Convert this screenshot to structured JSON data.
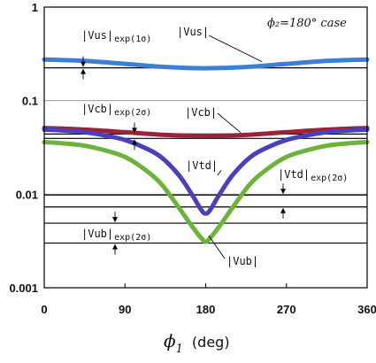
{
  "chart_data": {
    "type": "line",
    "case_label": "ϕ₂=180°  case",
    "x_axis": {
      "symbol": "ϕ",
      "subscript": "1",
      "unit": "(deg)",
      "range": [
        0,
        360
      ],
      "ticks": [
        0,
        90,
        180,
        270,
        360
      ],
      "tick_labels": [
        "0",
        "90",
        "180",
        "270",
        "360"
      ]
    },
    "y_axis": {
      "scale": "log",
      "range": [
        0.001,
        1
      ],
      "ticks": [
        0.001,
        0.01,
        0.1,
        1
      ],
      "tick_labels": [
        "0.001",
        "0.01",
        "0.1",
        "1"
      ]
    },
    "grid": "horizontal lines at 0.01, 0.1 and 1",
    "series": [
      {
        "key": "vus",
        "label": "|Vus|",
        "color": "#3d7fd6",
        "x": [
          0,
          45,
          90,
          135,
          180,
          225,
          270,
          315,
          360
        ],
        "y": [
          0.275,
          0.266,
          0.247,
          0.229,
          0.222,
          0.229,
          0.247,
          0.266,
          0.275
        ]
      },
      {
        "key": "vcb",
        "label": "|Vcb|",
        "color": "#9b2335",
        "x": [
          0,
          45,
          90,
          135,
          180,
          225,
          270,
          315,
          360
        ],
        "y": [
          0.051,
          0.049,
          0.046,
          0.043,
          0.042,
          0.043,
          0.046,
          0.049,
          0.051
        ]
      },
      {
        "key": "vtd",
        "label": "|Vtd|",
        "color": "#4a3fbf",
        "x": [
          0,
          20,
          45,
          70,
          90,
          110,
          130,
          150,
          165,
          175,
          180,
          185,
          195,
          210,
          230,
          250,
          270,
          290,
          315,
          340,
          360
        ],
        "y": [
          0.049,
          0.048,
          0.046,
          0.042,
          0.038,
          0.032,
          0.025,
          0.016,
          0.0098,
          0.0068,
          0.0062,
          0.0068,
          0.0098,
          0.016,
          0.025,
          0.032,
          0.038,
          0.042,
          0.046,
          0.048,
          0.049
        ]
      },
      {
        "key": "vub",
        "label": "|Vub|",
        "color": "#6cb33a",
        "x": [
          0,
          20,
          45,
          70,
          90,
          110,
          130,
          150,
          165,
          175,
          180,
          185,
          195,
          210,
          230,
          250,
          270,
          290,
          315,
          340,
          360
        ],
        "y": [
          0.036,
          0.035,
          0.033,
          0.029,
          0.025,
          0.019,
          0.013,
          0.0072,
          0.0045,
          0.0034,
          0.0031,
          0.0034,
          0.0045,
          0.0072,
          0.013,
          0.019,
          0.025,
          0.029,
          0.033,
          0.035,
          0.036
        ]
      }
    ],
    "reference_bands": [
      {
        "key": "vus_exp",
        "label_main": "|Vus|",
        "label_sub": "exp(1σ)",
        "lower": 0.224,
        "upper": 0.224,
        "label_x": 0
      },
      {
        "key": "vcb_exp",
        "label_main": "|Vcb|",
        "label_sub": "exp(2σ)",
        "lower": 0.0395,
        "upper": 0.044,
        "label_x": 0
      },
      {
        "key": "vtd_exp",
        "label_main": "|Vtd|",
        "label_sub": "exp(2σ)",
        "lower": 0.0073,
        "upper": 0.0098,
        "label_x": 270
      },
      {
        "key": "vub_exp",
        "label_main": "|Vub|",
        "label_sub": "exp(2σ)",
        "lower": 0.003,
        "upper": 0.0049,
        "label_x": 0
      }
    ],
    "curve_labels": [
      {
        "key": "vus_label",
        "text": "|Vus|"
      },
      {
        "key": "vcb_label",
        "text": "|Vcb|"
      },
      {
        "key": "vtd_label",
        "text": "|Vtd|"
      },
      {
        "key": "vub_label",
        "text": "|Vub|"
      }
    ]
  }
}
